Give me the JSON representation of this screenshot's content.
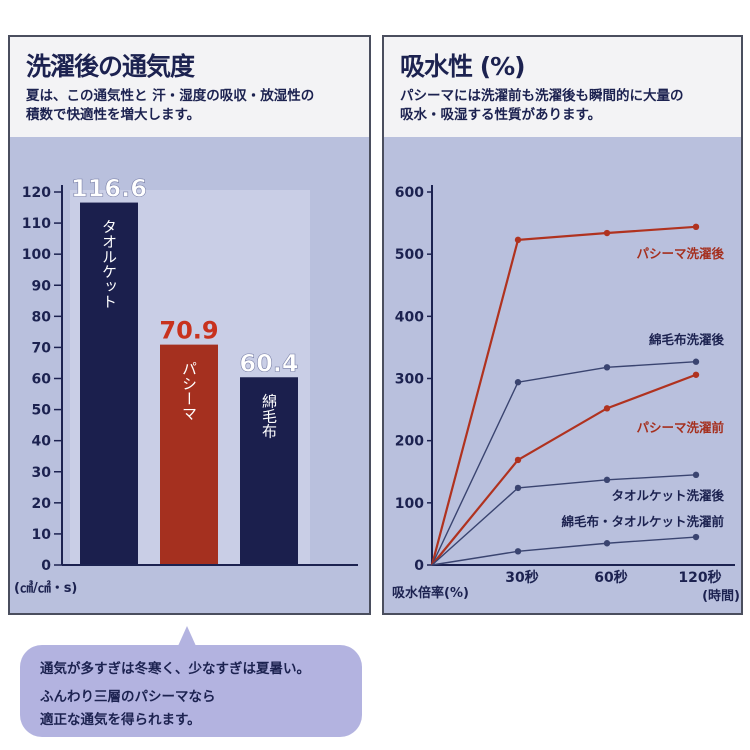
{
  "left": {
    "title": "洗濯後の通気度",
    "subtitle": "夏は、この通気性と 汗・湿度の吸収・放湿性の\n積数で快適性を増大します。"
  },
  "right": {
    "title": "吸水性 (%)",
    "subtitle": "パシーマには洗濯前も洗濯後も瞬間的に大量の\n吸水・吸湿する性質があります。"
  },
  "callout": {
    "line1": "通気が多すぎは冬寒く、少なすぎは夏暑い。",
    "line2": "ふんわり三層のパシーマなら",
    "line3": "適正な通気を得られます。"
  },
  "chart_data": [
    {
      "type": "bar",
      "title": "洗濯後の通気度",
      "categories": [
        "タオルケット",
        "パシーマ",
        "綿毛布"
      ],
      "values": [
        116.6,
        70.9,
        60.4
      ],
      "value_labels": [
        "116.6",
        "70.9",
        "60.4"
      ],
      "bar_colors": [
        "#1b1f4d",
        "#a5301f",
        "#1b1f4d"
      ],
      "value_label_colors": [
        "#ffffff",
        "#c8321e",
        "#ffffff"
      ],
      "ylabel": "(㎤/㎠・s)",
      "ylim": [
        0,
        120
      ],
      "yticks": [
        0,
        10,
        20,
        30,
        40,
        50,
        60,
        70,
        80,
        90,
        100,
        110,
        120
      ],
      "grid": false
    },
    {
      "type": "line",
      "title": "吸水性 (%)",
      "x": [
        "0",
        "30秒",
        "60秒",
        "120秒"
      ],
      "xtick_labels": [
        "30秒",
        "60秒",
        "120秒"
      ],
      "xlabel": "(時間)",
      "ylabel": "吸水倍率(%)",
      "ylim": [
        0,
        600
      ],
      "yticks": [
        0,
        100,
        200,
        300,
        400,
        500,
        600
      ],
      "grid": false,
      "series": [
        {
          "name": "パシーマ洗濯後",
          "values": [
            0,
            523,
            534,
            544
          ],
          "color": "#b0321f"
        },
        {
          "name": "綿毛布洗濯後",
          "values": [
            0,
            294,
            318,
            327
          ],
          "color": "#3a4470"
        },
        {
          "name": "パシーマ洗濯前",
          "values": [
            0,
            169,
            252,
            306
          ],
          "color": "#b0321f"
        },
        {
          "name": "タオルケット洗濯後",
          "values": [
            0,
            124,
            137,
            145
          ],
          "color": "#3a4470"
        },
        {
          "name": "綿毛布・タオルケット洗濯前",
          "values": [
            0,
            22,
            35,
            45
          ],
          "color": "#3a4470"
        }
      ]
    }
  ]
}
